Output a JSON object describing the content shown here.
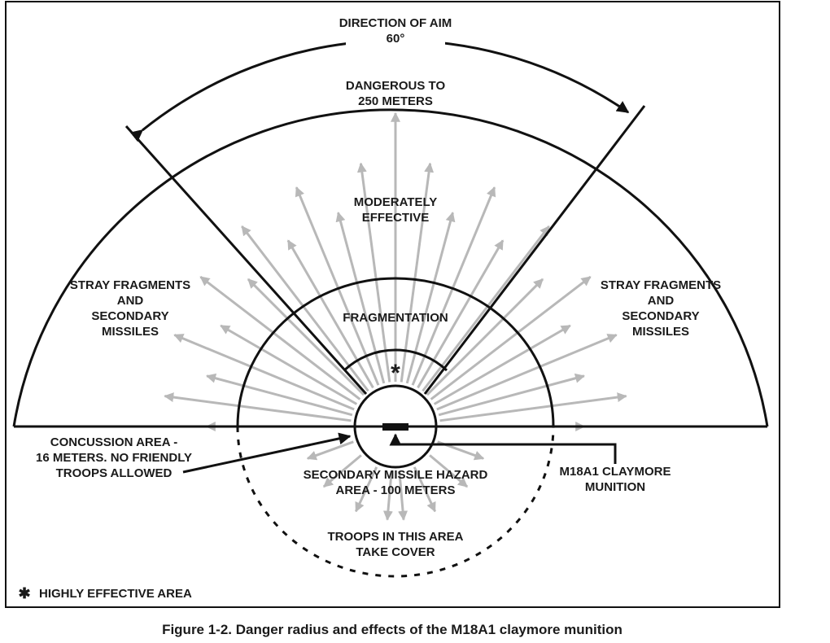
{
  "aim": {
    "label": "DIRECTION OF AIM",
    "angle": "60°"
  },
  "zones": {
    "dangerous": [
      "DANGEROUS TO",
      "250 METERS"
    ],
    "moderately": [
      "MODERATELY",
      "EFFECTIVE"
    ],
    "stray_left": [
      "STRAY FRAGMENTS",
      "AND",
      "SECONDARY",
      "MISSILES"
    ],
    "stray_right": [
      "STRAY FRAGMENTS",
      "AND",
      "SECONDARY",
      "MISSILES"
    ],
    "fragmentation": [
      "FRAGMENTATION"
    ],
    "highly_effective_mark": [
      "*"
    ],
    "concussion": [
      "CONCUSSION AREA -",
      "16 METERS. NO FRIENDLY",
      "TROOPS ALLOWED"
    ],
    "secondary_hazard": [
      "SECONDARY MISSILE HAZARD",
      "AREA - 100 METERS"
    ],
    "claymore": [
      "M18A1 CLAYMORE",
      "MUNITION"
    ],
    "troops": [
      "TROOPS IN THIS AREA",
      "TAKE COVER"
    ]
  },
  "legend": {
    "symbol": "✱",
    "label": "HIGHLY EFFECTIVE AREA"
  },
  "caption": "Figure 1-2. Danger radius and effects of the M18A1 claymore munition"
}
